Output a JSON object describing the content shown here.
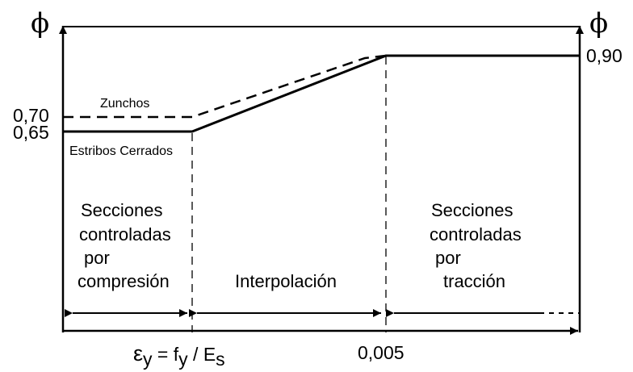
{
  "diagram": {
    "y_axis_symbol": "ϕ",
    "y_values": {
      "upper": "0,90",
      "mid": "0,70",
      "lower": "0,65"
    },
    "curves": {
      "dashed_label": "Zunchos",
      "solid_label": "Estribos Cerrados"
    },
    "x_ticks": {
      "strain_yield": {
        "eps": "ε",
        "eps_sub": "y",
        "eq": " = f",
        "f_sub": "y",
        "slash": " / E",
        "e_sub": "s"
      },
      "limit": "0,005"
    },
    "regions": {
      "compression": [
        "Secciones",
        "controladas",
        "por",
        "compresión"
      ],
      "interpolation": "Interpolación",
      "tension": [
        "Secciones",
        "controladas",
        "por",
        "tracción"
      ]
    },
    "colors": {
      "ink": "#000000",
      "background": "#ffffff"
    }
  }
}
